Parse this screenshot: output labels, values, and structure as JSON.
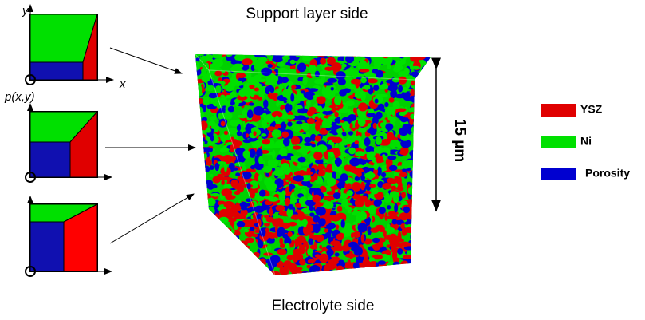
{
  "title": "Support layer side",
  "bottom_label": "Electrolyte side",
  "scale_label": "15 µm",
  "axes": {
    "y": "y",
    "x": "x",
    "point": "p(x,y)"
  },
  "legend": [
    {
      "label": "YSZ",
      "color": "#e00000"
    },
    {
      "label": "Ni",
      "color": "#00e000"
    },
    {
      "label": "Porosity",
      "color": "#0000d0"
    }
  ]
}
